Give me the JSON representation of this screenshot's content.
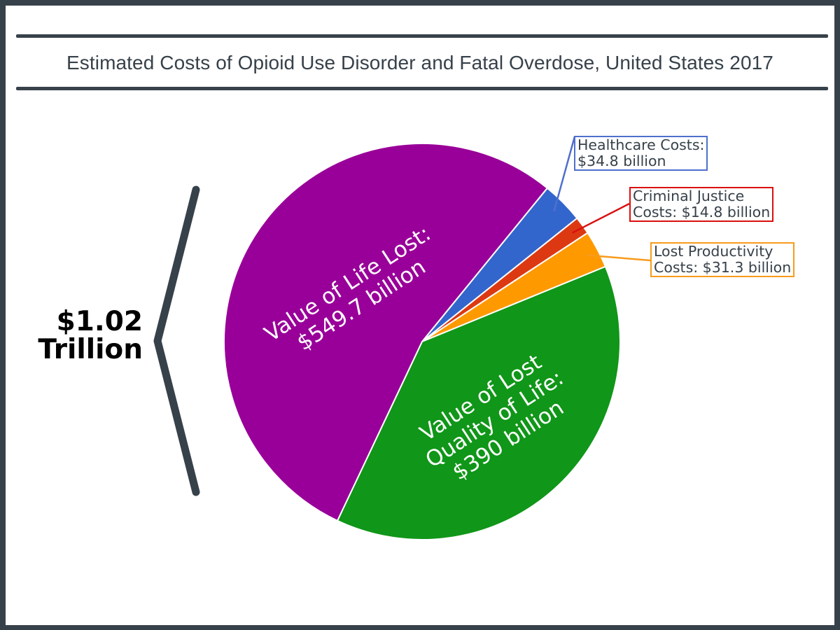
{
  "title": "Estimated Costs of Opioid Use Disorder and Fatal Overdose, United States 2017",
  "total": {
    "amount": "$1.02",
    "unit": "Trillion"
  },
  "colors": {
    "frame": "#37414a",
    "text": "#37414a",
    "life_lost": "#990099",
    "quality_of_life": "#109618",
    "healthcare": "#3366cc",
    "criminal_justice": "#dc3912",
    "productivity": "#ff9900"
  },
  "chart_data": {
    "type": "pie",
    "title": "Estimated Costs of Opioid Use Disorder and Fatal Overdose, United States 2017",
    "units": "billion USD",
    "total_label": "$1.02 Trillion",
    "slices": [
      {
        "key": "healthcare",
        "name": "Healthcare Costs",
        "value": 34.8,
        "color": "#3366cc",
        "label_lines": [
          "Healthcare Costs:",
          "$34.8 billion"
        ],
        "callout_border": "#4f6fcd"
      },
      {
        "key": "criminal_justice",
        "name": "Criminal Justice Costs",
        "value": 14.8,
        "color": "#dc3912",
        "label_lines": [
          "Criminal Justice",
          "Costs: $14.8 billion"
        ],
        "callout_border": "#d9100f"
      },
      {
        "key": "productivity",
        "name": "Lost Productivity Costs",
        "value": 31.3,
        "color": "#ff9900",
        "label_lines": [
          "Lost Productivity",
          "Costs: $31.3 billion"
        ],
        "callout_border": "#f89b1c"
      },
      {
        "key": "quality_of_life",
        "name": "Value of Lost Quality of Life",
        "value": 390,
        "color": "#109618",
        "label_lines": [
          "Value of Lost",
          "Quality of Life:",
          "$390 billion"
        ]
      },
      {
        "key": "life_lost",
        "name": "Value of Life Lost",
        "value": 549.7,
        "color": "#990099",
        "label_lines": [
          "Value of Life Lost:",
          "$549.7 billion"
        ]
      }
    ]
  }
}
